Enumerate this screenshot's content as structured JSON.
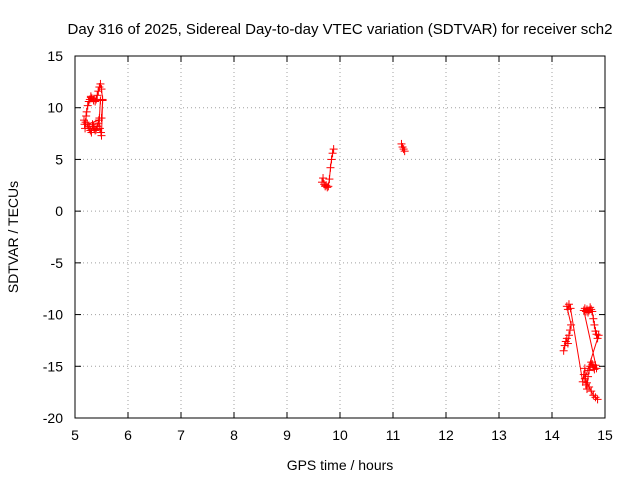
{
  "chart_data": {
    "type": "scatter",
    "title": "Day 316 of 2025, Sidereal Day-to-day VTEC variation (SDTVAR) for receiver sch2",
    "xlabel": "GPS time / hours",
    "ylabel": "SDTVAR / TECUs",
    "xlim": [
      5,
      15
    ],
    "ylim": [
      -20,
      15
    ],
    "grid": true,
    "x_ticks": [
      5,
      6,
      7,
      8,
      9,
      10,
      11,
      12,
      13,
      14,
      15
    ],
    "y_ticks": [
      15,
      10,
      5,
      0,
      -5,
      -10,
      -15,
      -20
    ],
    "colors": {
      "series": "#ff0000",
      "grid": "#a0a0a0",
      "axes": "#000000"
    },
    "series": [
      {
        "name": "sch2",
        "x": [
          5.17,
          5.18,
          5.19,
          5.2,
          5.21,
          5.22,
          5.24,
          5.26,
          5.28,
          5.3,
          5.3,
          5.32,
          5.35,
          5.38,
          5.4,
          5.42,
          5.44,
          5.46,
          5.48,
          5.5,
          5.52,
          5.48,
          5.46,
          5.44,
          5.42,
          5.4,
          5.38,
          5.36,
          5.35,
          5.33,
          5.31,
          5.29,
          5.27,
          5.25,
          5.23,
          5.45,
          5.47,
          5.49,
          5.5,
          5.52,
          5.5,
          9.66,
          9.68,
          9.7,
          9.72,
          9.74,
          9.76,
          9.78,
          9.8,
          9.82,
          9.84,
          9.86,
          9.88,
          11.16,
          11.18,
          11.2,
          11.22,
          14.22,
          14.24,
          14.26,
          14.28,
          14.3,
          14.32,
          14.34,
          14.36,
          14.28,
          14.3,
          14.32,
          14.35,
          14.58,
          14.6,
          14.62,
          14.64,
          14.66,
          14.68,
          14.7,
          14.72,
          14.74,
          14.76,
          14.78,
          14.8,
          14.82,
          14.84,
          14.6,
          14.62,
          14.64,
          14.66,
          14.68,
          14.7,
          14.72,
          14.74,
          14.76,
          14.78,
          14.8,
          14.82,
          14.84,
          14.86,
          14.88,
          14.62,
          14.66,
          14.7,
          14.74,
          14.78,
          14.82,
          14.86
        ],
        "y": [
          8.8,
          8.4,
          8.0,
          8.6,
          9.2,
          9.6,
          10.2,
          10.6,
          10.8,
          11.0,
          11.1,
          10.9,
          10.7,
          10.6,
          10.8,
          11.2,
          11.6,
          12.0,
          12.3,
          11.8,
          10.8,
          10.7,
          9.0,
          8.5,
          8.2,
          7.9,
          7.8,
          8.0,
          8.2,
          8.4,
          7.6,
          7.8,
          8.0,
          8.2,
          8.4,
          8.8,
          8.0,
          7.6,
          7.3,
          10.7,
          9.0,
          2.8,
          3.2,
          2.6,
          2.4,
          2.5,
          2.3,
          2.4,
          3.1,
          4.2,
          5.0,
          5.6,
          6.0,
          6.5,
          6.2,
          6.0,
          5.8,
          -13.5,
          -13.0,
          -12.6,
          -12.3,
          -12.8,
          -12.0,
          -11.5,
          -11.0,
          -9.2,
          -9.5,
          -9.0,
          -9.4,
          -16.5,
          -15.8,
          -15.2,
          -16.8,
          -17.2,
          -16.0,
          -15.4,
          -15.0,
          -14.6,
          -14.8,
          -15.1,
          -15.3,
          -14.9,
          -15.2,
          -9.6,
          -9.4,
          -9.7,
          -9.5,
          -9.8,
          -9.6,
          -9.3,
          -9.5,
          -9.7,
          -10.4,
          -11.0,
          -11.6,
          -11.9,
          -12.3,
          -12.0,
          -16.2,
          -16.6,
          -17.0,
          -17.4,
          -17.8,
          -18.0,
          -18.2
        ]
      }
    ]
  }
}
